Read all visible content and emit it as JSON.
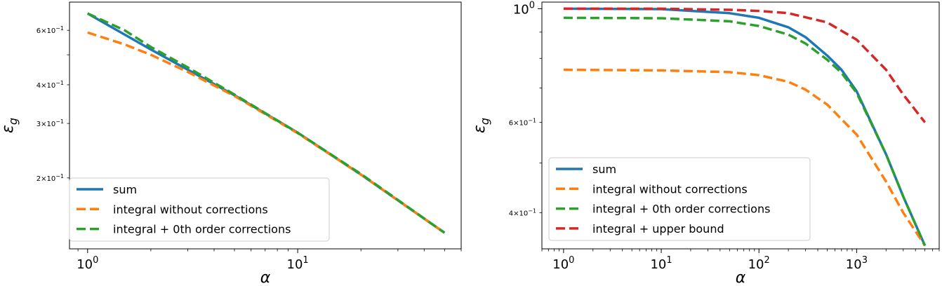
{
  "chart_data": [
    {
      "type": "line",
      "xscale": "log",
      "yscale": "log",
      "xlim": [
        0.82,
        60
      ],
      "ylim": [
        0.118,
        0.74
      ],
      "xlabel": "α",
      "ylabel": "ε_g",
      "xlabel_main": "α",
      "ylabel_main": "ε",
      "ylabel_sub": "g",
      "legend_position": "lower-left",
      "x_ticks_major": [
        {
          "value": 1,
          "base": "10",
          "exp": "0"
        },
        {
          "value": 10,
          "base": "10",
          "exp": "1"
        }
      ],
      "y_ticks_labeled": [
        {
          "value": 0.6,
          "mant": "6×10",
          "exp": "−1"
        },
        {
          "value": 0.4,
          "mant": "4×10",
          "exp": "−1"
        },
        {
          "value": 0.3,
          "mant": "3×10",
          "exp": "−1"
        },
        {
          "value": 0.2,
          "mant": "2×10",
          "exp": "−1"
        }
      ],
      "y_ticks_unlabeled": [
        0.5
      ],
      "series": [
        {
          "name": "sum",
          "color": "#1f77b4",
          "dash": "solid",
          "x": [
            1,
            2,
            5,
            10,
            20,
            50
          ],
          "y": [
            0.68,
            0.52,
            0.37,
            0.28,
            0.205,
            0.133
          ]
        },
        {
          "name": "integral without corrections",
          "color": "#ff7f0e",
          "dash": "dashed",
          "x": [
            1,
            1.5,
            2,
            3,
            5,
            10,
            20,
            50
          ],
          "y": [
            0.59,
            0.54,
            0.5,
            0.44,
            0.368,
            0.279,
            0.205,
            0.133
          ]
        },
        {
          "name": "integral + 0th order corrections",
          "color": "#2ca02c",
          "dash": "dashed",
          "x": [
            1,
            1.5,
            2,
            3,
            5,
            10,
            20,
            50
          ],
          "y": [
            0.68,
            0.6,
            0.53,
            0.455,
            0.372,
            0.28,
            0.206,
            0.133
          ]
        }
      ]
    },
    {
      "type": "line",
      "xscale": "log",
      "yscale": "log",
      "xlim": [
        0.6,
        7000
      ],
      "ylim": [
        0.34,
        1.03
      ],
      "xlabel": "α",
      "ylabel": "ε_g",
      "xlabel_main": "α",
      "ylabel_main": "ε",
      "ylabel_sub": "g",
      "legend_position": "lower-left",
      "x_ticks_major": [
        {
          "value": 1,
          "base": "10",
          "exp": "0"
        },
        {
          "value": 10,
          "base": "10",
          "exp": "1"
        },
        {
          "value": 100,
          "base": "10",
          "exp": "2"
        },
        {
          "value": 1000,
          "base": "10",
          "exp": "3"
        }
      ],
      "y_tick_major": {
        "value": 1,
        "base": "10",
        "exp": "0"
      },
      "y_ticks_labeled": [
        {
          "value": 0.6,
          "mant": "6×10",
          "exp": "−1"
        },
        {
          "value": 0.4,
          "mant": "4×10",
          "exp": "−1"
        }
      ],
      "y_ticks_unlabeled": [
        0.5,
        0.7,
        0.8,
        0.9
      ],
      "series": [
        {
          "name": "sum",
          "color": "#1f77b4",
          "dash": "solid",
          "x": [
            1,
            10,
            50,
            100,
            200,
            300,
            500,
            700,
            1000,
            2000,
            3000,
            5000
          ],
          "y": [
            1.0,
            0.998,
            0.98,
            0.96,
            0.92,
            0.88,
            0.81,
            0.76,
            0.69,
            0.52,
            0.43,
            0.345
          ]
        },
        {
          "name": "integral without corrections",
          "color": "#ff7f0e",
          "dash": "dashed",
          "x": [
            1,
            10,
            50,
            100,
            200,
            300,
            500,
            1000,
            2000,
            3000,
            5000
          ],
          "y": [
            0.76,
            0.758,
            0.752,
            0.742,
            0.72,
            0.695,
            0.65,
            0.568,
            0.46,
            0.4,
            0.345
          ]
        },
        {
          "name": "integral + 0th order corrections",
          "color": "#2ca02c",
          "dash": "dashed",
          "x": [
            1,
            10,
            50,
            100,
            200,
            300,
            500,
            700,
            1000,
            2000,
            3000,
            5000
          ],
          "y": [
            0.96,
            0.958,
            0.945,
            0.925,
            0.89,
            0.855,
            0.795,
            0.75,
            0.685,
            0.52,
            0.43,
            0.345
          ]
        },
        {
          "name": "integral + upper bound",
          "color": "#d62728",
          "dash": "dashed",
          "x": [
            1,
            10,
            50,
            100,
            200,
            500,
            1000,
            2000,
            3000,
            5000
          ],
          "y": [
            1.0,
            1.0,
            0.995,
            0.99,
            0.98,
            0.94,
            0.87,
            0.76,
            0.68,
            0.6
          ]
        }
      ]
    }
  ]
}
